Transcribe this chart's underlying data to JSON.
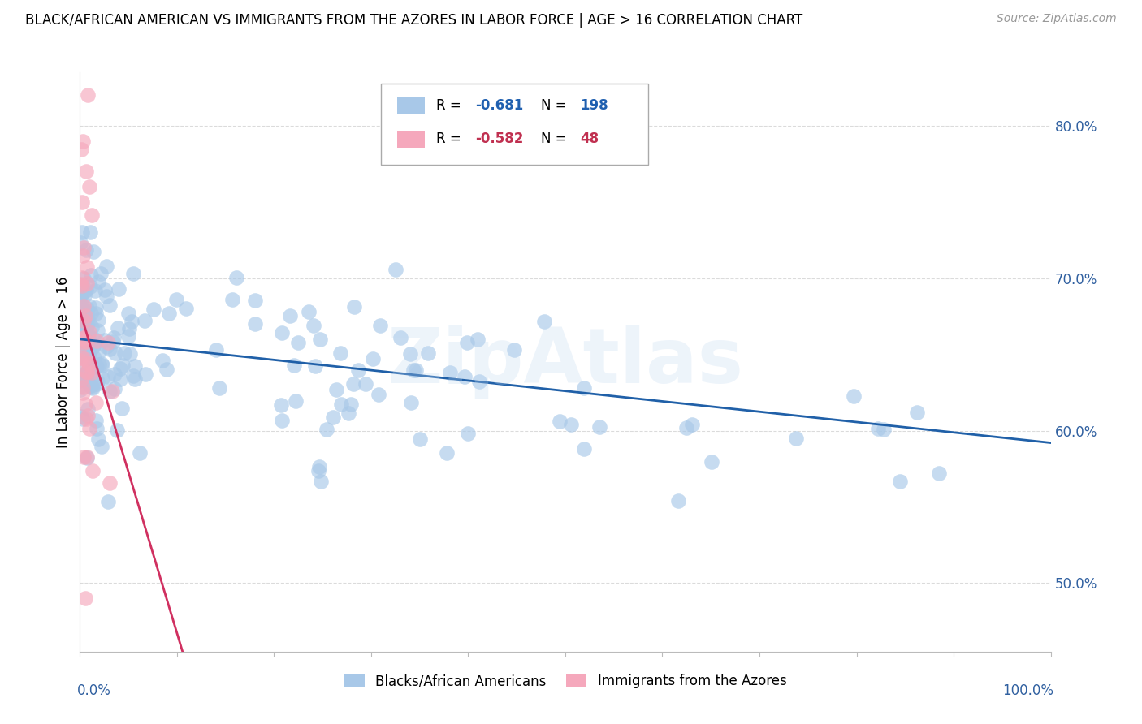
{
  "title": "BLACK/AFRICAN AMERICAN VS IMMIGRANTS FROM THE AZORES IN LABOR FORCE | AGE > 16 CORRELATION CHART",
  "source": "Source: ZipAtlas.com",
  "ylabel": "In Labor Force | Age > 16",
  "blue_color": "#a8c8e8",
  "pink_color": "#f5a8bc",
  "blue_line_color": "#2060a8",
  "pink_line_color": "#d03060",
  "watermark": "ZipAtlas",
  "xlim": [
    0.0,
    1.0
  ],
  "ylim": [
    0.455,
    0.835
  ],
  "yticks": [
    0.5,
    0.6,
    0.7,
    0.8
  ],
  "blue_seed": 42,
  "pink_seed": 123
}
